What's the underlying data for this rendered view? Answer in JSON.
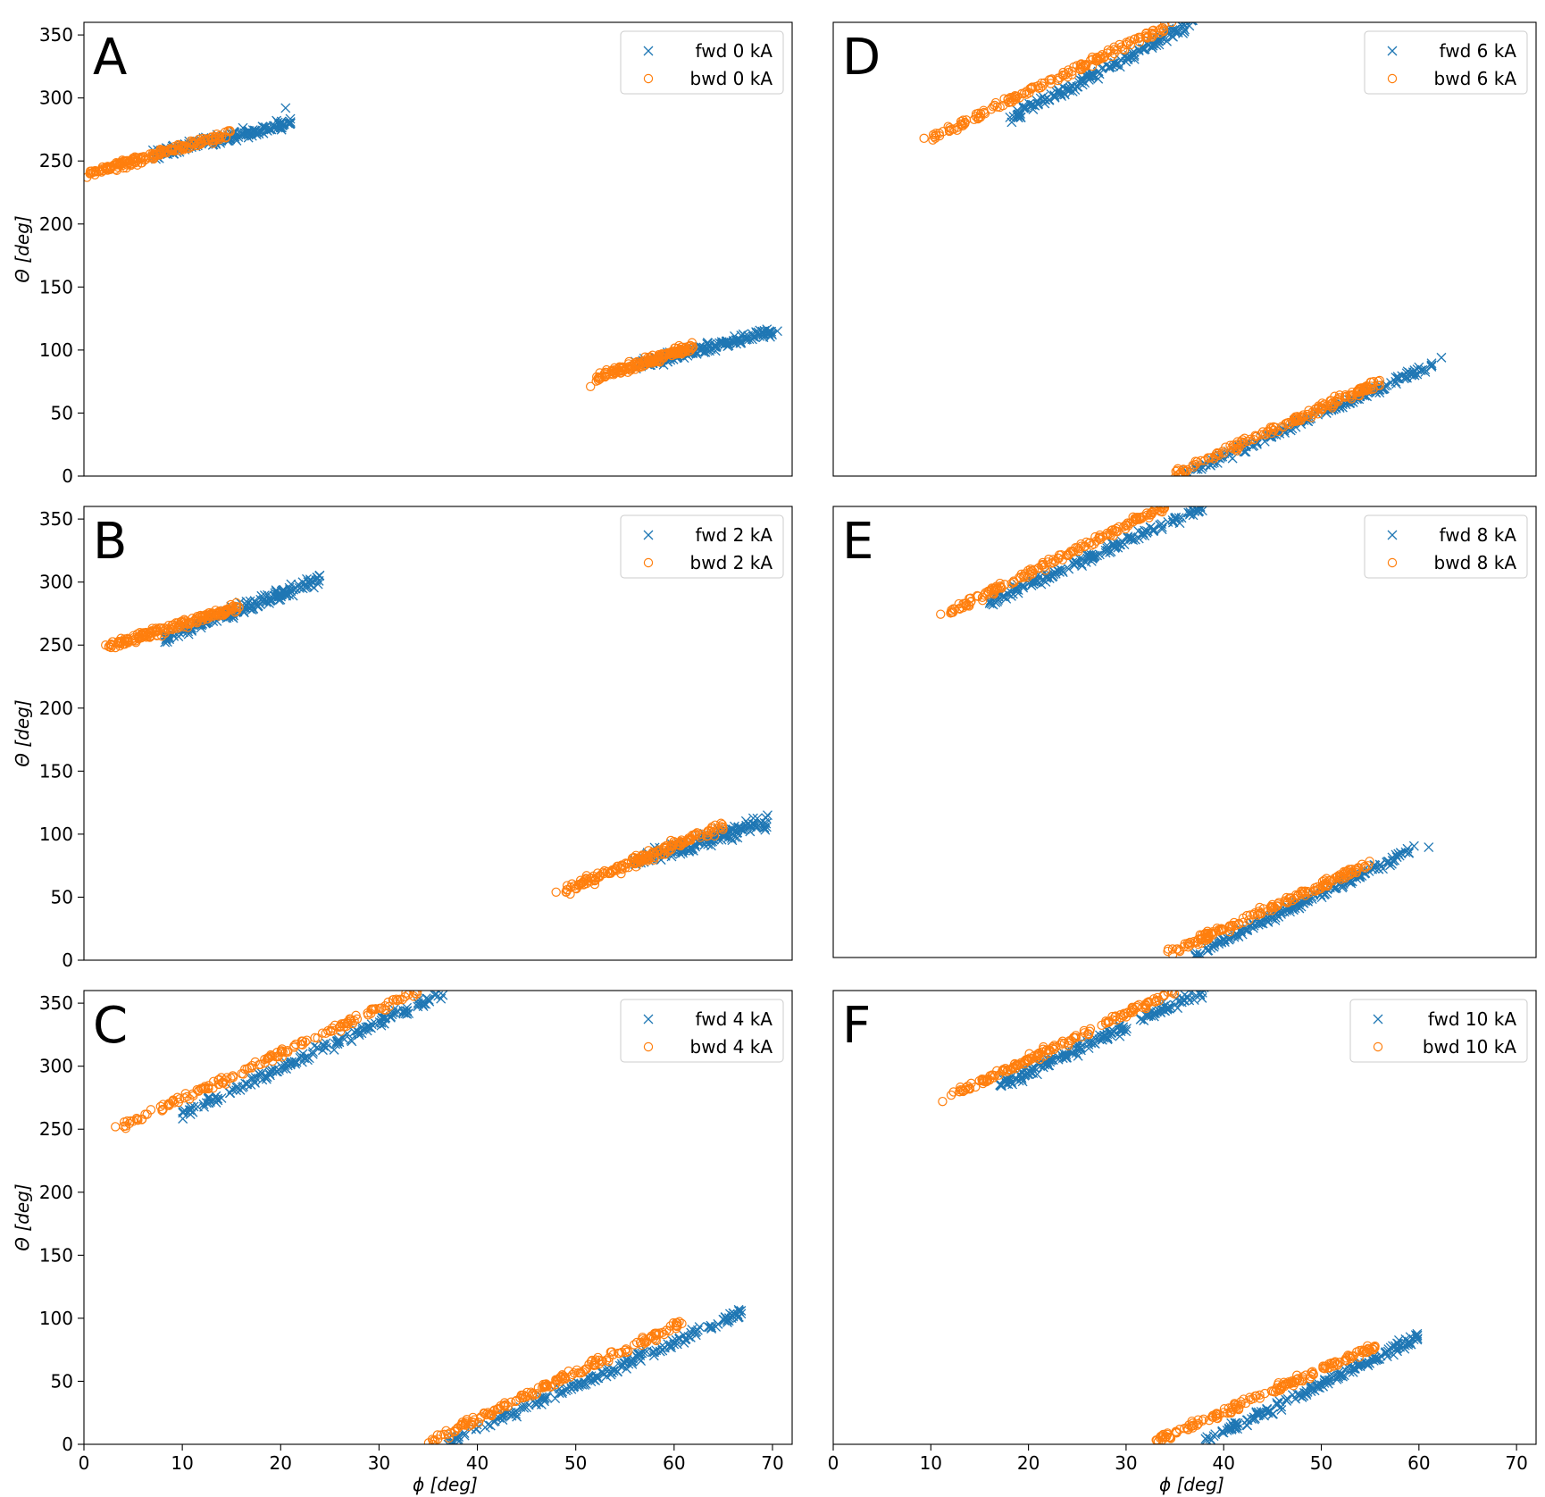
{
  "colors": {
    "fwd": "#1f77b4",
    "bwd": "#ff7f0e"
  },
  "chart_data": [
    {
      "type": "scatter",
      "panel": "A",
      "title": "",
      "xlabel": "",
      "ylabel": "Θ [deg]",
      "xlim": [
        0,
        72
      ],
      "ylim": [
        0,
        360
      ],
      "xticks": [],
      "yticks": [
        0,
        50,
        100,
        150,
        200,
        250,
        300,
        350
      ],
      "legend": "top-right",
      "series": [
        {
          "name": "fwd 0 kA",
          "marker": "x",
          "segments": [
            {
              "x": [
                7,
                21
              ],
              "y": [
                255,
                280
              ],
              "spread": 6,
              "n": 170
            },
            {
              "x": [
                56,
                70
              ],
              "y": [
                88,
                115
              ],
              "spread": 6,
              "n": 170
            }
          ],
          "extra": [
            [
              20.5,
              292
            ],
            [
              70.5,
              115
            ]
          ]
        },
        {
          "name": "bwd 0 kA",
          "marker": "o",
          "segments": [
            {
              "x": [
                0.5,
                15
              ],
              "y": [
                240,
                272
              ],
              "spread": 5,
              "n": 180
            },
            {
              "x": [
                52,
                62
              ],
              "y": [
                78,
                103
              ],
              "spread": 5,
              "n": 170
            }
          ],
          "extra": [
            [
              0.3,
              237
            ],
            [
              51.5,
              71
            ]
          ]
        }
      ]
    },
    {
      "type": "scatter",
      "panel": "B",
      "title": "",
      "xlabel": "",
      "ylabel": "Θ [deg]",
      "xlim": [
        0,
        72
      ],
      "ylim": [
        0,
        360
      ],
      "xticks": [],
      "yticks": [
        0,
        50,
        100,
        150,
        200,
        250,
        300,
        350
      ],
      "legend": "top-right",
      "series": [
        {
          "name": "fwd 2 kA",
          "marker": "x",
          "segments": [
            {
              "x": [
                8,
                24
              ],
              "y": [
                255,
                302
              ],
              "spread": 7,
              "n": 170
            },
            {
              "x": [
                56,
                69.5
              ],
              "y": [
                78,
                110
              ],
              "spread": 7,
              "n": 170
            }
          ],
          "extra": [
            [
              69.5,
              115
            ]
          ]
        },
        {
          "name": "bwd 2 kA",
          "marker": "o",
          "segments": [
            {
              "x": [
                2.5,
                16
              ],
              "y": [
                249,
                281
              ],
              "spread": 5,
              "n": 180
            },
            {
              "x": [
                49,
                65
              ],
              "y": [
                56,
                107
              ],
              "spread": 6,
              "n": 180
            }
          ],
          "extra": [
            [
              2.2,
              250
            ],
            [
              48,
              54
            ]
          ]
        }
      ]
    },
    {
      "type": "scatter",
      "panel": "C",
      "title": "",
      "xlabel": "ϕ [deg]",
      "ylabel": "Θ [deg]",
      "xlim": [
        0,
        72
      ],
      "ylim": [
        0,
        360
      ],
      "xticks": [
        0,
        10,
        20,
        30,
        40,
        50,
        60,
        70
      ],
      "yticks": [
        0,
        50,
        100,
        150,
        200,
        250,
        300,
        350
      ],
      "legend": "top-right",
      "series": [
        {
          "name": "fwd 4 kA",
          "marker": "x",
          "segments": [
            {
              "x": [
                10,
                37
              ],
              "y": [
                262,
                360
              ],
              "spread": 6,
              "n": 170
            },
            {
              "x": [
                37,
                67
              ],
              "y": [
                2,
                105
              ],
              "spread": 6,
              "n": 190
            }
          ],
          "extra": []
        },
        {
          "name": "bwd 4 kA",
          "marker": "o",
          "segments": [
            {
              "x": [
                4,
                34
              ],
              "y": [
                253,
                360
              ],
              "spread": 5,
              "n": 170
            },
            {
              "x": [
                35,
                61
              ],
              "y": [
                2,
                97
              ],
              "spread": 5,
              "n": 180
            }
          ],
          "extra": [
            [
              3.2,
              252
            ]
          ]
        }
      ]
    },
    {
      "type": "scatter",
      "panel": "D",
      "title": "",
      "xlabel": "",
      "ylabel": "",
      "xlim": [
        0,
        72
      ],
      "ylim": [
        0,
        360
      ],
      "xticks": [],
      "yticks": [],
      "legend": "top-right",
      "series": [
        {
          "name": "fwd 6 kA",
          "marker": "x",
          "segments": [
            {
              "x": [
                18,
                37
              ],
              "y": [
                283,
                360
              ],
              "spread": 6,
              "n": 170
            },
            {
              "x": [
                36,
                62
              ],
              "y": [
                2,
                90
              ],
              "spread": 5,
              "n": 180
            }
          ],
          "extra": [
            [
              62.3,
              94
            ]
          ]
        },
        {
          "name": "bwd 6 kA",
          "marker": "o",
          "segments": [
            {
              "x": [
                10,
                35
              ],
              "y": [
                268,
                360
              ],
              "spread": 5,
              "n": 170
            },
            {
              "x": [
                35,
                56
              ],
              "y": [
                2,
                75
              ],
              "spread": 5,
              "n": 170
            }
          ],
          "extra": [
            [
              9.3,
              268
            ]
          ]
        }
      ]
    },
    {
      "type": "scatter",
      "panel": "E",
      "title": "",
      "xlabel": "",
      "ylabel": "",
      "xlim": [
        0,
        72
      ],
      "ylim": [
        0,
        360
      ],
      "xticks": [],
      "yticks": [],
      "legend": "top-right",
      "series": [
        {
          "name": "fwd 8 kA",
          "marker": "x",
          "segments": [
            {
              "x": [
                16,
                38
              ],
              "y": [
                284,
                360
              ],
              "spread": 6,
              "n": 170
            },
            {
              "x": [
                37,
                59
              ],
              "y": [
                2,
                85
              ],
              "spread": 5,
              "n": 180
            }
          ],
          "extra": [
            [
              61,
              88
            ],
            [
              59.5,
              89
            ]
          ]
        },
        {
          "name": "bwd 8 kA",
          "marker": "o",
          "segments": [
            {
              "x": [
                12,
                34
              ],
              "y": [
                276,
                360
              ],
              "spread": 5,
              "n": 170
            },
            {
              "x": [
                34,
                55
              ],
              "y": [
                2,
                75
              ],
              "spread": 5,
              "n": 170
            }
          ],
          "extra": [
            [
              11,
              274
            ]
          ]
        }
      ]
    },
    {
      "type": "scatter",
      "panel": "F",
      "title": "",
      "xlabel": "ϕ [deg]",
      "ylabel": "",
      "xlim": [
        0,
        72
      ],
      "ylim": [
        0,
        360
      ],
      "xticks": [
        0,
        10,
        20,
        30,
        40,
        50,
        60,
        70
      ],
      "yticks": [],
      "legend": "top-right",
      "series": [
        {
          "name": "fwd 10 kA",
          "marker": "x",
          "segments": [
            {
              "x": [
                17,
                38
              ],
              "y": [
                285,
                360
              ],
              "spread": 7,
              "n": 180
            },
            {
              "x": [
                38,
                60
              ],
              "y": [
                2,
                85
              ],
              "spread": 6,
              "n": 180
            }
          ],
          "extra": []
        },
        {
          "name": "bwd 10 kA",
          "marker": "o",
          "segments": [
            {
              "x": [
                12,
                35
              ],
              "y": [
                276,
                360
              ],
              "spread": 5,
              "n": 170
            },
            {
              "x": [
                33,
                55.5
              ],
              "y": [
                2,
                78
              ],
              "spread": 5,
              "n": 170
            }
          ],
          "extra": [
            [
              11.2,
              272
            ]
          ]
        }
      ]
    }
  ]
}
